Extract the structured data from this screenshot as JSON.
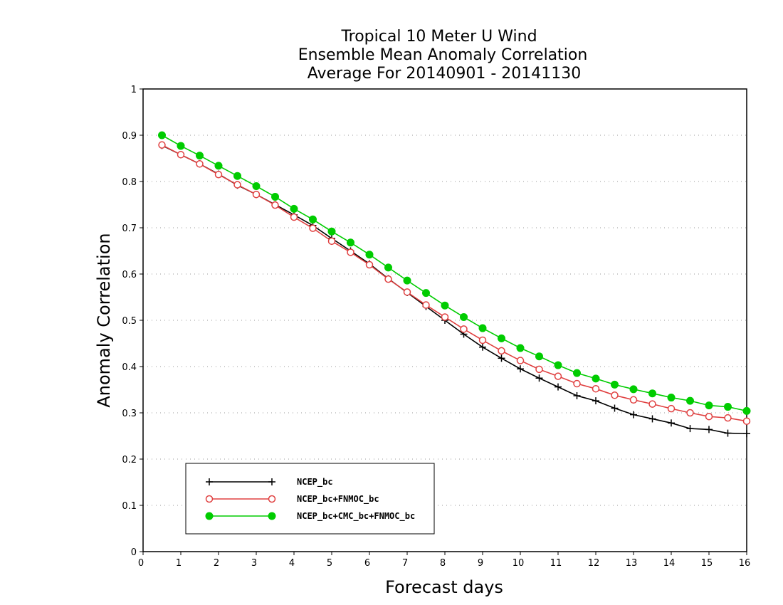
{
  "chart_data": {
    "type": "line",
    "title_lines": [
      "Tropical 10 Meter U Wind",
      "Ensemble Mean Anomaly Correlation",
      "Average For 20140901 - 20141130"
    ],
    "xlabel": "Forecast days",
    "ylabel": "Anomaly Correlation",
    "xlim": [
      0,
      16
    ],
    "ylim": [
      0,
      1
    ],
    "x_ticks": [
      "0",
      "1",
      "2",
      "3",
      "4",
      "5",
      "6",
      "7",
      "8",
      "9",
      "10",
      "11",
      "12",
      "13",
      "14",
      "15",
      "16"
    ],
    "y_ticks": [
      "0",
      "0.1",
      "0.2",
      "0.3",
      "0.4",
      "0.5",
      "0.6",
      "0.7",
      "0.8",
      "0.9",
      "1"
    ],
    "grid": "horizontal dotted",
    "legend_position": "bottom-left",
    "x": [
      0.5,
      1,
      1.5,
      2,
      2.5,
      3,
      3.5,
      4,
      4.5,
      5,
      5.5,
      6,
      6.5,
      7,
      7.5,
      8,
      8.5,
      9,
      9.5,
      10,
      10.5,
      11,
      11.5,
      12,
      12.5,
      13,
      13.5,
      14,
      14.5,
      15,
      15.5,
      16
    ],
    "series": [
      {
        "name": "NCEP_bc",
        "color": "#000000",
        "marker": "plus",
        "values": [
          0.878,
          0.858,
          0.838,
          0.816,
          0.792,
          0.772,
          0.75,
          0.728,
          0.705,
          0.677,
          0.65,
          0.622,
          0.59,
          0.56,
          0.53,
          0.5,
          0.47,
          0.442,
          0.418,
          0.395,
          0.375,
          0.356,
          0.337,
          0.326,
          0.31,
          0.296,
          0.287,
          0.278,
          0.266,
          0.264,
          0.256,
          0.255
        ]
      },
      {
        "name": "NCEP_bc+FNMOC_bc",
        "color": "#e04040",
        "marker": "open-circle",
        "values": [
          0.879,
          0.858,
          0.838,
          0.815,
          0.793,
          0.772,
          0.749,
          0.723,
          0.699,
          0.671,
          0.647,
          0.62,
          0.589,
          0.561,
          0.533,
          0.507,
          0.481,
          0.457,
          0.434,
          0.413,
          0.394,
          0.379,
          0.363,
          0.352,
          0.338,
          0.328,
          0.319,
          0.309,
          0.3,
          0.292,
          0.289,
          0.282
        ]
      },
      {
        "name": "NCEP_bc+CMC_bc+FNMOC_bc",
        "color": "#00cc00",
        "marker": "filled-circle",
        "values": [
          0.9,
          0.877,
          0.856,
          0.834,
          0.812,
          0.79,
          0.767,
          0.741,
          0.718,
          0.692,
          0.668,
          0.642,
          0.614,
          0.586,
          0.559,
          0.532,
          0.507,
          0.483,
          0.461,
          0.44,
          0.422,
          0.403,
          0.386,
          0.374,
          0.361,
          0.351,
          0.342,
          0.333,
          0.326,
          0.316,
          0.313,
          0.304
        ]
      }
    ]
  }
}
